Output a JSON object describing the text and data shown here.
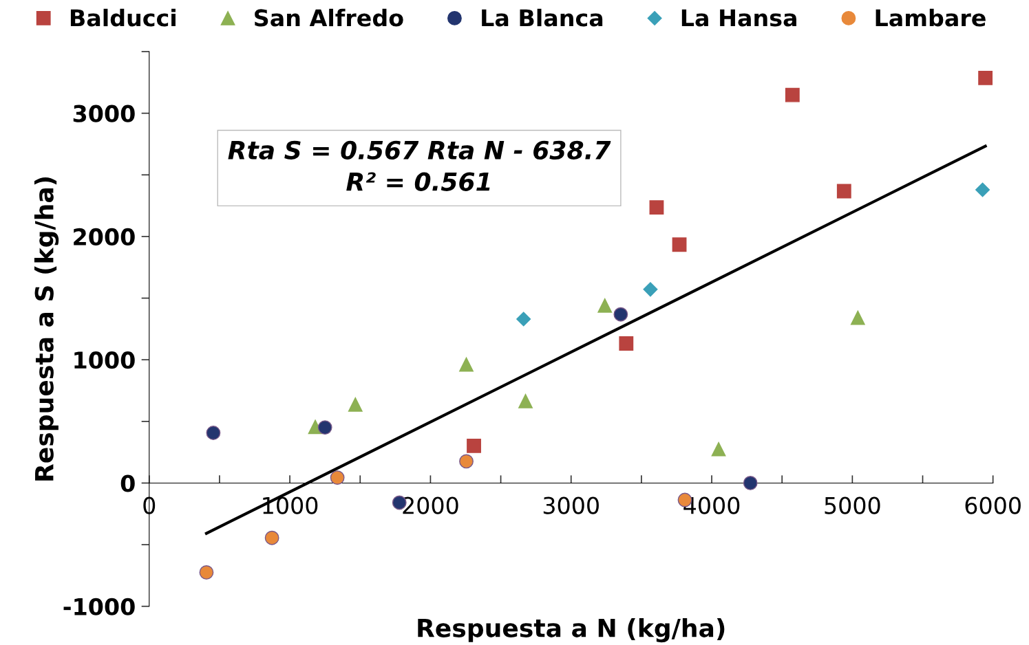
{
  "chart_data": {
    "type": "scatter",
    "xlabel": "Respuesta a N (kg/ha)",
    "ylabel": "Respuesta a S (kg/ha)",
    "xlim": [
      0,
      6000
    ],
    "ylim": [
      -1000,
      3500
    ],
    "xticks": [
      0,
      {
        "value": 500,
        "label": null
      },
      1000,
      {
        "value": 1500,
        "label": null
      },
      2000,
      {
        "value": 2500,
        "label": null
      },
      3000,
      {
        "value": 3500,
        "label": null
      },
      4000,
      {
        "value": 4500,
        "label": null
      },
      5000,
      {
        "value": 5500,
        "label": null
      },
      6000
    ],
    "yticks": [
      -1000,
      {
        "value": -500,
        "label": null
      },
      0,
      {
        "value": 500,
        "label": null
      },
      1000,
      {
        "value": 1500,
        "label": null
      },
      2000,
      {
        "value": 2500,
        "label": null
      },
      3000,
      {
        "value": 3500,
        "label": null
      }
    ],
    "grid": false,
    "legend": "top",
    "annotations": [
      "Rta S = 0.567 Rta N - 638.7",
      "R² = 0.561"
    ],
    "series": [
      {
        "name": "Balducci",
        "color": "#b9433f",
        "marker": "square",
        "x": [
          5946,
          4574,
          3608,
          4941,
          3770,
          3392,
          2309
        ],
        "values": [
          3286,
          3148,
          2236,
          2368,
          1934,
          1132,
          302
        ]
      },
      {
        "name": "San Alfredo",
        "color": "#8db153",
        "marker": "triangle",
        "x": [
          3240,
          5039,
          2255,
          2676,
          1466,
          1181,
          4049
        ],
        "values": [
          1440,
          1341,
          962,
          665,
          637,
          456,
          275
        ]
      },
      {
        "name": "La Blanca",
        "color": "#23356f",
        "marker": "circle",
        "x": [
          456,
          1250,
          3353,
          1779,
          4275
        ],
        "values": [
          407,
          451,
          1368,
          -159,
          0
        ]
      },
      {
        "name": "La Hansa",
        "color": "#3aa0b8",
        "marker": "diamond",
        "x": [
          5926,
          3564,
          2662
        ],
        "values": [
          2379,
          1571,
          1330
        ]
      },
      {
        "name": "Lambare",
        "color": "#e8893a",
        "marker": "circle",
        "x": [
          407,
          873,
          1338,
          2255,
          3809
        ],
        "values": [
          -725,
          -445,
          44,
          176,
          -137
        ]
      },
      {
        "type": "line",
        "color": "#000000",
        "marker": "none",
        "x": [
          407,
          5946
        ],
        "values": [
          -408,
          2733
        ]
      }
    ]
  }
}
